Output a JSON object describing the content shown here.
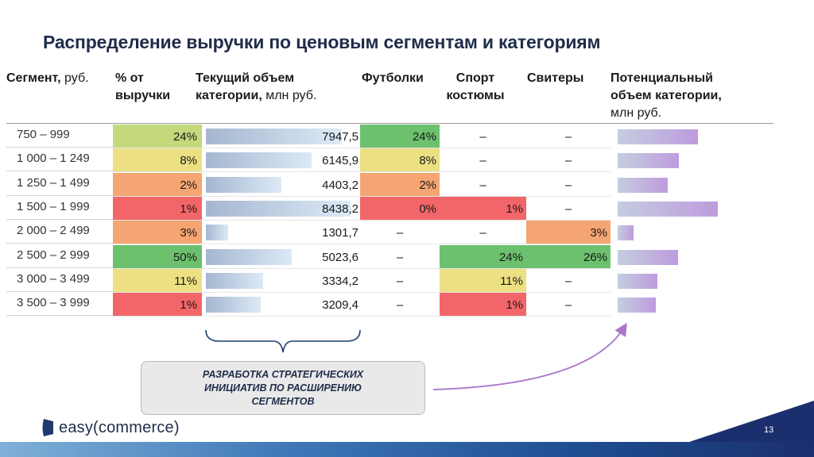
{
  "title": "Распределение выручки по ценовым сегментам и категориям",
  "headers": {
    "segment_bold": "Сегмент,",
    "segment_unit": " руб.",
    "share_line1": "% от",
    "share_line2": "выручки",
    "volume_line1": "Текущий объем",
    "volume_line2_bold": "категории,",
    "volume_line2_unit": " млн руб.",
    "tshirts": "Футболки",
    "sport_line1": "Спорт",
    "sport_line2": "костюмы",
    "sweaters": "Свитеры",
    "potential_line1": "Потенциальный",
    "potential_line2": "объем категории,",
    "potential_line3": "млн руб."
  },
  "chart_data": {
    "type": "table",
    "columns": [
      "Сегмент, руб.",
      "% от выручки",
      "Текущий объем категории, млн руб.",
      "Футболки",
      "Спорт костюмы",
      "Свитеры",
      "Потенциальный объем категории, млн руб."
    ],
    "rows": [
      {
        "segment": "750 – 999",
        "share": "24%",
        "share_value": 24,
        "volume": "7947,5",
        "volume_value": 7947.5,
        "tshirts": "24%",
        "sport": "–",
        "sweaters": "–",
        "potential_rel": 0.8
      },
      {
        "segment": "1 000 – 1 249",
        "share": "8%",
        "share_value": 8,
        "volume": "6145,9",
        "volume_value": 6145.9,
        "tshirts": "8%",
        "sport": "–",
        "sweaters": "–",
        "potential_rel": 0.61
      },
      {
        "segment": "1 250 – 1 499",
        "share": "2%",
        "share_value": 2,
        "volume": "4403,2",
        "volume_value": 4403.2,
        "tshirts": "2%",
        "sport": "–",
        "sweaters": "–",
        "potential_rel": 0.5
      },
      {
        "segment": "1 500 – 1 999",
        "share": "1%",
        "share_value": 1,
        "volume": "8438,2",
        "volume_value": 8438.2,
        "tshirts": "0%",
        "sport": "1%",
        "sweaters": "–",
        "potential_rel": 1.0
      },
      {
        "segment": "2 000 – 2 499",
        "share": "3%",
        "share_value": 3,
        "volume": "1301,7",
        "volume_value": 1301.7,
        "tshirts": "–",
        "sport": "–",
        "sweaters": "3%",
        "potential_rel": 0.16
      },
      {
        "segment": "2 500 – 2 999",
        "share": "50%",
        "share_value": 50,
        "volume": "5023,6",
        "volume_value": 5023.6,
        "tshirts": "–",
        "sport": "24%",
        "sweaters": "26%",
        "potential_rel": 0.6
      },
      {
        "segment": "3 000 – 3 499",
        "share": "11%",
        "share_value": 11,
        "volume": "3334,2",
        "volume_value": 3334.2,
        "tshirts": "–",
        "sport": "11%",
        "sweaters": "–",
        "potential_rel": 0.4
      },
      {
        "segment": "3 500 – 3 999",
        "share": "1%",
        "share_value": 1,
        "volume": "3209,4",
        "volume_value": 3209.4,
        "tshirts": "–",
        "sport": "1%",
        "sweaters": "–",
        "potential_rel": 0.38
      }
    ],
    "volume_max": 8438.2
  },
  "callout": {
    "line1": "РАЗРАБОТКА СТРАТЕГИЧЕСКИХ",
    "line2": "ИНИЦИАТИВ ПО РАСШИРЕНИЮ",
    "line3": "СЕГМЕНТОВ"
  },
  "logo": {
    "text": "easy(commerce)"
  },
  "page_number": "13",
  "colors": {
    "green": "#6cc06e",
    "light_green": "#c3d97c",
    "yellow": "#ece083",
    "orange": "#f5a572",
    "red": "#f2666a",
    "title": "#1f2d4a",
    "arrow": "#a877c8"
  }
}
